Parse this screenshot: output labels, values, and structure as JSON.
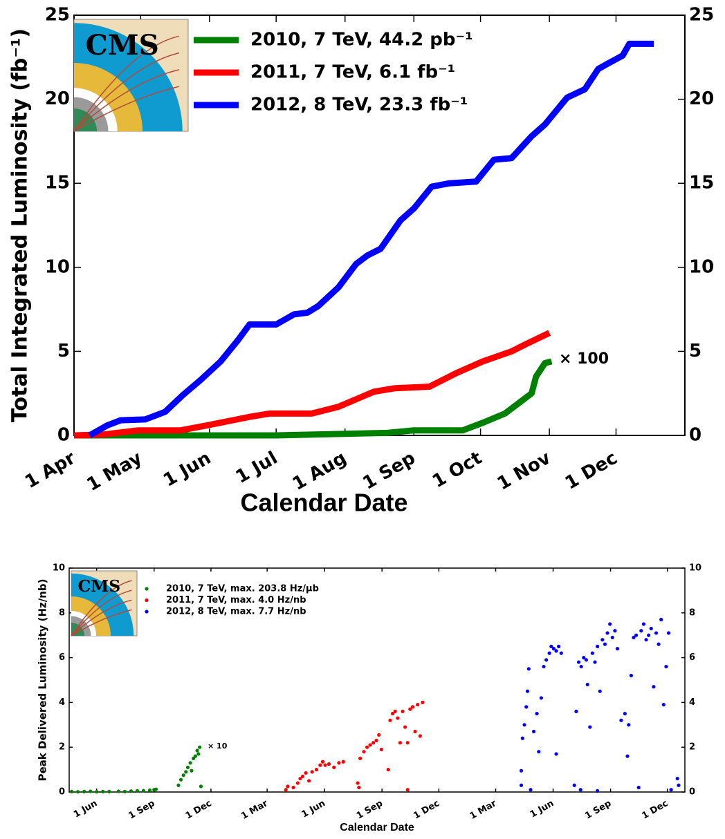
{
  "chart_data": [
    {
      "type": "line",
      "logo": "CMS",
      "y_label": "Total Integrated Luminosity (fb⁻¹)",
      "x_label": "Calendar Date",
      "annotation": "× 100",
      "xlim": [
        0,
        275
      ],
      "ylim": [
        0,
        25
      ],
      "xticks": [
        {
          "value": 0,
          "label": "1 Apr"
        },
        {
          "value": 30,
          "label": "1 May"
        },
        {
          "value": 61,
          "label": "1 Jun"
        },
        {
          "value": 91,
          "label": "1 Jul"
        },
        {
          "value": 122,
          "label": "1 Aug"
        },
        {
          "value": 153,
          "label": "1 Sep"
        },
        {
          "value": 183,
          "label": "1 Oct"
        },
        {
          "value": 214,
          "label": "1 Nov"
        },
        {
          "value": 244,
          "label": "1 Dec"
        }
      ],
      "yticks": [
        0,
        5,
        10,
        15,
        20,
        25
      ],
      "series": [
        {
          "name": "2010, 7 TeV, 44.2 pb⁻¹",
          "color": "#008000",
          "x": [
            0,
            91,
            141,
            153,
            175,
            184,
            194,
            206,
            208,
            212,
            215
          ],
          "values": [
            0,
            0,
            0.15,
            0.3,
            0.3,
            0.75,
            1.3,
            2.5,
            3.5,
            4.3,
            4.4
          ]
        },
        {
          "name": "2011, 7 TeV, 6.1 fb⁻¹",
          "color": "#ff0000",
          "x": [
            0,
            13,
            29,
            48,
            60,
            79,
            88,
            107,
            119,
            135,
            144,
            160,
            172,
            184,
            197,
            203,
            214
          ],
          "values": [
            0,
            0.05,
            0.3,
            0.3,
            0.6,
            1.1,
            1.3,
            1.3,
            1.7,
            2.6,
            2.8,
            2.9,
            3.7,
            4.4,
            5.0,
            5.4,
            6.1
          ]
        },
        {
          "name": "2012, 8 TeV, 23.3 fb⁻¹",
          "color": "#0000ff",
          "x": [
            7,
            15,
            21,
            32,
            41,
            49,
            57,
            66,
            74,
            79,
            91,
            99,
            105,
            110,
            119,
            127,
            132,
            138,
            147,
            153,
            161,
            169,
            181,
            189,
            197,
            206,
            212,
            222,
            230,
            236,
            240,
            247,
            250,
            261
          ],
          "values": [
            0,
            0.6,
            0.9,
            0.95,
            1.4,
            2.4,
            3.3,
            4.4,
            5.7,
            6.6,
            6.6,
            7.2,
            7.3,
            7.7,
            8.8,
            10.2,
            10.7,
            11.1,
            12.8,
            13.5,
            14.8,
            15.0,
            15.1,
            16.4,
            16.5,
            17.8,
            18.5,
            20.1,
            20.6,
            21.8,
            22.1,
            22.6,
            23.3,
            23.3
          ]
        }
      ]
    },
    {
      "type": "scatter",
      "logo": "CMS",
      "y_label": "Peak Delivered Luminosity (Hz/nb)",
      "x_label": "Calendar Date",
      "annotation": "× 10",
      "xlim": [
        -44,
        942
      ],
      "ylim": [
        0,
        10
      ],
      "xticks": [
        {
          "value": 0,
          "label": "1 Jun"
        },
        {
          "value": 92,
          "label": "1 Sep"
        },
        {
          "value": 183,
          "label": "1 Dec"
        },
        {
          "value": 273,
          "label": "1 Mar"
        },
        {
          "value": 365,
          "label": "1 Jun"
        },
        {
          "value": 457,
          "label": "1 Sep"
        },
        {
          "value": 548,
          "label": "1 Dec"
        },
        {
          "value": 639,
          "label": "1 Mar"
        },
        {
          "value": 731,
          "label": "1 Jun"
        },
        {
          "value": 823,
          "label": "1 Sep"
        },
        {
          "value": 914,
          "label": "1 Dec"
        }
      ],
      "yticks": [
        0,
        2,
        4,
        6,
        8,
        10
      ],
      "series": [
        {
          "name": "2010, 7 TeV, max. 203.8 Hz/μb",
          "color": "#008000",
          "x": [
            -40,
            -30,
            -20,
            -10,
            0,
            10,
            20,
            35,
            45,
            55,
            65,
            75,
            85,
            92,
            95,
            131,
            135,
            139,
            143,
            146,
            150,
            152,
            155,
            158,
            161,
            163,
            165,
            167
          ],
          "values": [
            0.02,
            0.01,
            0.02,
            0.03,
            0.01,
            0.02,
            0.02,
            0.03,
            0.02,
            0.04,
            0.05,
            0.06,
            0.08,
            0.1,
            0.12,
            0.3,
            0.55,
            0.75,
            0.9,
            1.1,
            1.3,
            0.95,
            1.5,
            1.6,
            1.85,
            1.7,
            2.0,
            0.25
          ]
        },
        {
          "name": "2011, 7 TeV, max. 4.0 Hz/nb",
          "color": "#ff0000",
          "x": [
            303,
            306,
            315,
            322,
            326,
            330,
            335,
            340,
            345,
            352,
            358,
            362,
            366,
            372,
            380,
            388,
            395,
            418,
            420,
            422,
            428,
            433,
            438,
            443,
            448,
            452,
            456,
            467,
            470,
            474,
            478,
            482,
            486,
            490,
            494,
            498,
            498,
            502,
            506,
            510,
            514,
            518,
            522
          ],
          "values": [
            0.1,
            0.25,
            0.2,
            0.4,
            0.6,
            0.7,
            0.85,
            0.5,
            0.9,
            1.0,
            1.2,
            1.35,
            1.2,
            1.25,
            1.1,
            1.3,
            1.35,
            0.4,
            0.2,
            1.5,
            1.8,
            2.0,
            2.1,
            2.2,
            2.3,
            2.55,
            1.9,
            1.0,
            3.2,
            3.5,
            3.6,
            3.3,
            2.2,
            3.6,
            2.9,
            0.1,
            2.2,
            3.7,
            3.8,
            2.7,
            3.9,
            2.5,
            4.0
          ]
        },
        {
          "name": "2012, 8 TeV, max. 7.7 Hz/nb",
          "color": "#0000ff",
          "x": [
            680,
            680,
            682,
            685,
            688,
            690,
            692,
            695,
            700,
            705,
            708,
            712,
            716,
            720,
            725,
            728,
            732,
            736,
            736,
            740,
            744,
            765,
            768,
            772,
            775,
            776,
            780,
            784,
            786,
            790,
            794,
            798,
            802,
            802,
            806,
            810,
            814,
            818,
            822,
            826,
            830,
            834,
            840,
            846,
            850,
            852,
            856,
            860,
            864,
            868,
            872,
            876,
            880,
            884,
            888,
            892,
            896,
            900,
            904,
            908,
            912,
            916,
            920,
            930,
            932
          ],
          "values": [
            0.3,
            0.95,
            2.4,
            3.0,
            3.8,
            4.5,
            5.5,
            0.1,
            2.7,
            3.5,
            1.8,
            4.2,
            5.6,
            5.9,
            6.2,
            6.5,
            6.4,
            6.3,
            1.7,
            6.5,
            6.2,
            0.3,
            3.6,
            5.8,
            0.1,
            5.6,
            6.0,
            5.9,
            4.8,
            2.9,
            6.2,
            5.8,
            6.5,
            0.05,
            4.5,
            6.8,
            6.6,
            7.1,
            7.5,
            6.9,
            7.2,
            6.4,
            3.2,
            3.5,
            1.6,
            3.0,
            5.2,
            6.9,
            7.0,
            0.2,
            7.2,
            7.5,
            6.8,
            7.0,
            7.3,
            4.7,
            7.1,
            6.6,
            7.7,
            3.9,
            5.6,
            7.1,
            0.1,
            0.6,
            0.3
          ]
        }
      ]
    }
  ]
}
